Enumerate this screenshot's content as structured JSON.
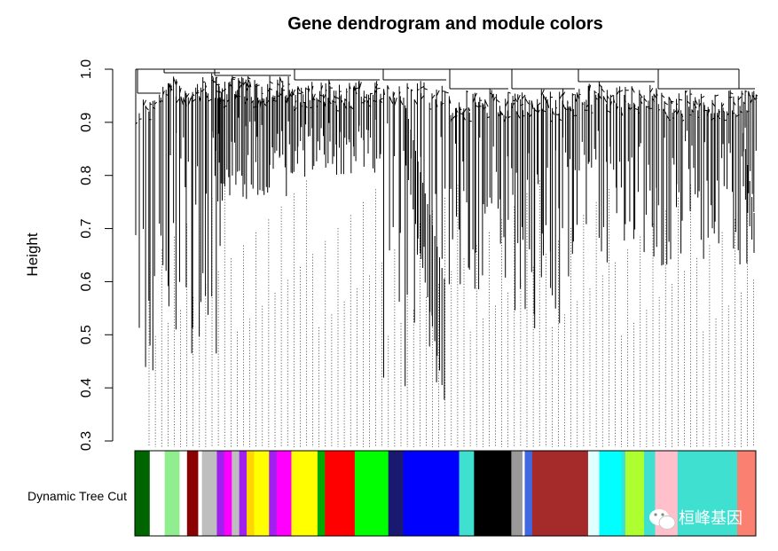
{
  "chart_data": {
    "type": "dendrogram",
    "title": "Gene dendrogram and module colors",
    "ylabel": "Height",
    "ylim": [
      0.3,
      1.0
    ],
    "yticks": [
      "0.3",
      "0.4",
      "0.5",
      "0.6",
      "0.7",
      "0.8",
      "0.9",
      "1.0"
    ],
    "color_row_label": "Dynamic Tree Cut",
    "module_colors_in_order": [
      {
        "color": "#006400",
        "weight": 2
      },
      {
        "color": "#FFFFFF",
        "weight": 2
      },
      {
        "color": "#90EE90",
        "weight": 2
      },
      {
        "color": "#FFFFFF",
        "weight": 1
      },
      {
        "color": "#8B0000",
        "weight": 1.5
      },
      {
        "color": "#FFFFFF",
        "weight": 0.5
      },
      {
        "color": "#BEBEBE",
        "weight": 2
      },
      {
        "color": "#A020F0",
        "weight": 1
      },
      {
        "color": "#FF00FF",
        "weight": 1
      },
      {
        "color": "#BEBEBE",
        "weight": 1
      },
      {
        "color": "#A020F0",
        "weight": 1
      },
      {
        "color": "#FFD700",
        "weight": 1
      },
      {
        "color": "#FFFF00",
        "weight": 2
      },
      {
        "color": "#A020F0",
        "weight": 1
      },
      {
        "color": "#FF00FF",
        "weight": 2
      },
      {
        "color": "#FFFF00",
        "weight": 3.5
      },
      {
        "color": "#00AA00",
        "weight": 1
      },
      {
        "color": "#FF0000",
        "weight": 4
      },
      {
        "color": "#00FF00",
        "weight": 4.5
      },
      {
        "color": "#191970",
        "weight": 2
      },
      {
        "color": "#0000FF",
        "weight": 7.5
      },
      {
        "color": "#40E0D0",
        "weight": 2
      },
      {
        "color": "#000000",
        "weight": 5
      },
      {
        "color": "#999999",
        "weight": 1.5
      },
      {
        "color": "#FFFFFF",
        "weight": 0.3
      },
      {
        "color": "#4169E1",
        "weight": 1
      },
      {
        "color": "#A52A2A",
        "weight": 7.5
      },
      {
        "color": "#E0FFFF",
        "weight": 1.5
      },
      {
        "color": "#00FFFF",
        "weight": 3
      },
      {
        "color": "#40E0D0",
        "weight": 0.5
      },
      {
        "color": "#ADFF2F",
        "weight": 2.5
      },
      {
        "color": "#40E0D0",
        "weight": 1.5
      },
      {
        "color": "#FFC0CB",
        "weight": 3
      },
      {
        "color": "#40E0D0",
        "weight": 8
      },
      {
        "color": "#FA8072",
        "weight": 2.5
      }
    ]
  },
  "watermark": {
    "icon": "wechat-icon",
    "text": "桓峰基因"
  }
}
